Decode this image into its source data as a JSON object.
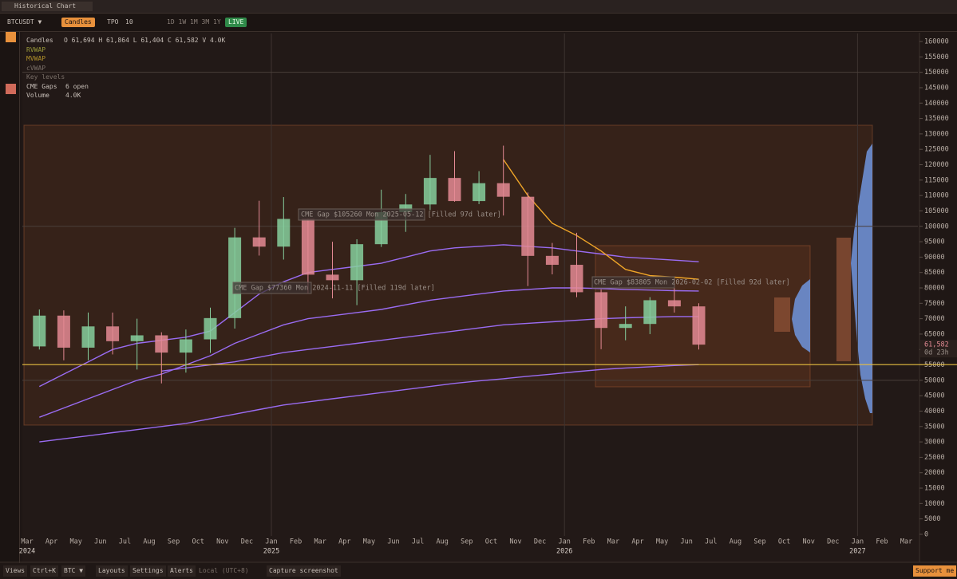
{
  "tab": {
    "title": "Historical Chart"
  },
  "toolbar": {
    "symbol": "BTCUSDT ▼",
    "chart_type": "Candles",
    "tpo": "TPO",
    "tpo_value": "10",
    "ranges": [
      "1D",
      "1W",
      "1M",
      "3M",
      "1Y"
    ],
    "live": "LIVE"
  },
  "legend": {
    "items": [
      {
        "name": "Candles",
        "value": "O 61,694  H 61,864  L 61,404  C 61,582  V 4.0K"
      },
      {
        "name": "RVWAP"
      },
      {
        "name": "MVWAP"
      },
      {
        "name": "cVWAP"
      },
      {
        "name": "Key levels"
      },
      {
        "name": "CME Gaps",
        "value": "6 open"
      },
      {
        "name": "Volume",
        "value": "4.0K"
      }
    ]
  },
  "chart_data": {
    "type": "candlestick",
    "up_color": "#86cf9e",
    "down_color": "#e48a94",
    "x": [
      "2024-03",
      "2024-04",
      "2024-05",
      "2024-06",
      "2024-07",
      "2024-08",
      "2024-09",
      "2024-10",
      "2024-11",
      "2024-12",
      "2025-01",
      "2025-02",
      "2025-03",
      "2025-04",
      "2025-05",
      "2025-06",
      "2025-07",
      "2025-08",
      "2025-09",
      "2025-10",
      "2025-11",
      "2025-12",
      "2026-01",
      "2026-02",
      "2026-03",
      "2026-04",
      "2026-05",
      "2026-06"
    ],
    "open": [
      61000,
      71000,
      60600,
      67500,
      62700,
      64600,
      59000,
      63300,
      70200,
      96400,
      93400,
      102400,
      84300,
      82500,
      94200,
      104600,
      107100,
      115700,
      108200,
      114000,
      109600,
      90400,
      87500,
      78600,
      67000,
      68300,
      76000,
      74000
    ],
    "high": [
      73000,
      72700,
      72000,
      72000,
      70000,
      65600,
      66500,
      73600,
      99500,
      108300,
      109500,
      102500,
      95000,
      95800,
      111900,
      110500,
      123200,
      124400,
      117900,
      126200,
      111000,
      94600,
      97900,
      79500,
      74000,
      77000,
      82000,
      75000
    ],
    "low": [
      60000,
      56500,
      56500,
      58400,
      53500,
      49000,
      52500,
      58900,
      66800,
      90500,
      89200,
      78200,
      76600,
      74400,
      93300,
      98200,
      105300,
      108000,
      107200,
      103500,
      80600,
      84400,
      77000,
      60100,
      63000,
      65000,
      72000,
      60000
    ],
    "close": [
      71000,
      60600,
      67500,
      62700,
      64600,
      59000,
      63300,
      70200,
      96400,
      93400,
      102400,
      84300,
      82500,
      94200,
      104600,
      107100,
      115700,
      108200,
      114000,
      109600,
      90400,
      87500,
      78600,
      67000,
      68300,
      76000,
      74000,
      61582
    ],
    "series": [
      {
        "color": "#9a6cf2",
        "values": [
          48000,
          52000,
          56000,
          60000,
          62000,
          63000,
          64000,
          66000,
          72000,
          78000,
          82000,
          85000,
          86000,
          87000,
          88000,
          90000,
          92000,
          93000,
          93500,
          94000,
          93500,
          93000,
          92000,
          91000,
          90000,
          89500,
          89000,
          88500
        ]
      },
      {
        "color": "#9a6cf2",
        "values": [
          38000,
          41000,
          44000,
          47000,
          50000,
          52000,
          55000,
          58000,
          62000,
          65000,
          68000,
          70000,
          71000,
          72000,
          73000,
          74500,
          76000,
          77000,
          78000,
          79000,
          79500,
          80000,
          80000,
          79800,
          79500,
          79300,
          79100,
          79000
        ]
      },
      {
        "color": "#9a6cf2",
        "values": [
          null,
          null,
          null,
          null,
          null,
          53000,
          54000,
          55000,
          56000,
          57500,
          59000,
          60000,
          61000,
          62000,
          63000,
          64000,
          65000,
          66000,
          67000,
          68000,
          68500,
          69000,
          69500,
          70000,
          70300,
          70500,
          70700,
          70700
        ]
      },
      {
        "color": "#9a6cf2",
        "values": [
          30000,
          31000,
          32000,
          33000,
          34000,
          35000,
          36000,
          37500,
          39000,
          40500,
          42000,
          43000,
          44000,
          45000,
          46000,
          47000,
          48000,
          49000,
          49800,
          50500,
          51300,
          52000,
          52800,
          53500,
          54000,
          54400,
          54800,
          55100
        ]
      },
      {
        "color": "#f0a628",
        "values": [
          null,
          null,
          null,
          null,
          null,
          null,
          null,
          null,
          null,
          null,
          null,
          null,
          null,
          null,
          null,
          null,
          null,
          null,
          null,
          121700,
          110000,
          101000,
          97000,
          92000,
          86000,
          84000,
          83500,
          82800
        ]
      }
    ],
    "key_levels": [
      {
        "value": 55100,
        "color": "#e8c040"
      }
    ],
    "round_levels": [
      150000,
      100000,
      50000
    ],
    "annotations": [
      "CME Gap $105260  Mon 2025-05-12  [Filled 97d later]",
      "CME Gap $77360  Mon 2024-11-11  [Filled 119d later]",
      "CME Gap $83805  Mon 2026-02-02  [Filled 92d later]"
    ],
    "last_price": "61,582",
    "countdown": "0d 23h",
    "ylim": [
      -2600,
      162600
    ],
    "yticks": [
      0,
      5000,
      10000,
      15000,
      20000,
      25000,
      30000,
      35000,
      40000,
      45000,
      50000,
      55000,
      60000,
      65000,
      70000,
      75000,
      80000,
      85000,
      90000,
      95000,
      100000,
      105000,
      110000,
      115000,
      120000,
      125000,
      130000,
      135000,
      140000,
      145000,
      150000,
      155000,
      160000
    ],
    "x_axis": [
      {
        "month": "Mar",
        "year": "2024"
      },
      {
        "month": "Apr"
      },
      {
        "month": "May"
      },
      {
        "month": "Jun"
      },
      {
        "month": "Jul"
      },
      {
        "month": "Aug"
      },
      {
        "month": "Sep"
      },
      {
        "month": "Oct"
      },
      {
        "month": "Nov"
      },
      {
        "month": "Dec"
      },
      {
        "month": "Jan",
        "year": "2025"
      },
      {
        "month": "Feb"
      },
      {
        "month": "Mar"
      },
      {
        "month": "Apr"
      },
      {
        "month": "May"
      },
      {
        "month": "Jun"
      },
      {
        "month": "Jul"
      },
      {
        "month": "Aug"
      },
      {
        "month": "Sep"
      },
      {
        "month": "Oct"
      },
      {
        "month": "Nov"
      },
      {
        "month": "Dec"
      },
      {
        "month": "Jan",
        "year": "2026"
      },
      {
        "month": "Feb"
      },
      {
        "month": "Mar"
      },
      {
        "month": "Apr"
      },
      {
        "month": "May"
      },
      {
        "month": "Jun"
      },
      {
        "month": "Jul"
      },
      {
        "month": "Aug"
      },
      {
        "month": "Sep"
      },
      {
        "month": "Oct"
      },
      {
        "month": "Nov"
      },
      {
        "month": "Dec"
      },
      {
        "month": "Jan",
        "year": "2027"
      },
      {
        "month": "Feb"
      },
      {
        "month": "Mar"
      }
    ]
  },
  "footer": {
    "items": [
      "Views",
      "Ctrl+K",
      "BTC ▼",
      "Layouts",
      "Settings",
      "Alerts",
      "Local (UTC+8)",
      "Capture screenshot"
    ],
    "support": "Support me"
  }
}
